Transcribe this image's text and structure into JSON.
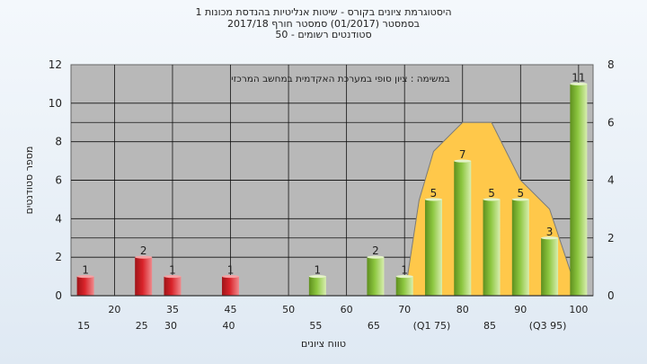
{
  "header": {
    "title_line1": "היסטוגרמת ציונים בקורס - שיטות אנליטיות בהנדסת מכונות 1",
    "title_line2": "בסמסטר  (01/2017)  סמסטר חורף 2017/18",
    "title_line3": "סטודנטים רשומים - 50"
  },
  "colors": {
    "plot_bg": "#b8b8b8",
    "low_bar": "#d9232a",
    "high_bar": "#8cc63f",
    "area": "#ffc84a",
    "page_bg": "#e6eef6"
  },
  "chart_data": {
    "type": "bar",
    "annotation": "במשימה : ציון סופי במערכת האקדמית במחשב המרכזי",
    "xlabel": "טווח ציונים",
    "ylabel": "מספר סטודנטים",
    "x_tick_labels_row1": [
      "20",
      "35",
      "45",
      "50",
      "60",
      "70",
      "80",
      "90",
      "100"
    ],
    "x_tick_labels_row2": [
      "15",
      "25",
      "30",
      "40",
      "55",
      "65",
      "(Q1 75)",
      "85",
      "(Q3 95)"
    ],
    "ylim_left": [
      0,
      12
    ],
    "left_ticks": [
      "0",
      "2",
      "4",
      "6",
      "8",
      "10",
      "12"
    ],
    "ylim_right": [
      0,
      8
    ],
    "right_ticks": [
      "0",
      "2",
      "4",
      "6",
      "8"
    ],
    "grid": true,
    "bars": [
      {
        "x": 15,
        "value": 1,
        "label": "1",
        "group": "low"
      },
      {
        "x": 25,
        "value": 2,
        "label": "2",
        "group": "low"
      },
      {
        "x": 30,
        "value": 1,
        "label": "1",
        "group": "low"
      },
      {
        "x": 40,
        "value": 1,
        "label": "1",
        "group": "low"
      },
      {
        "x": 55,
        "value": 1,
        "label": "1",
        "group": "high"
      },
      {
        "x": 65,
        "value": 2,
        "label": "2",
        "group": "high"
      },
      {
        "x": 70,
        "value": 1,
        "label": "1",
        "group": "high"
      },
      {
        "x": 75,
        "value": 5,
        "label": "5",
        "group": "high"
      },
      {
        "x": 80,
        "value": 7,
        "label": "7",
        "group": "high"
      },
      {
        "x": 85,
        "value": 5,
        "label": "5",
        "group": "high"
      },
      {
        "x": 90,
        "value": 5,
        "label": "5",
        "group": "high"
      },
      {
        "x": 95,
        "value": 3,
        "label": "3",
        "group": "high"
      },
      {
        "x": 100,
        "value": 11,
        "label": "11",
        "group": "high"
      }
    ],
    "area_series": [
      {
        "x": 70,
        "value": 0
      },
      {
        "x": 72.5,
        "value": 3.3
      },
      {
        "x": 75,
        "value": 5
      },
      {
        "x": 80,
        "value": 6
      },
      {
        "x": 85,
        "value": 6
      },
      {
        "x": 90,
        "value": 4
      },
      {
        "x": 95,
        "value": 3
      },
      {
        "x": 100,
        "value": 0
      }
    ]
  }
}
